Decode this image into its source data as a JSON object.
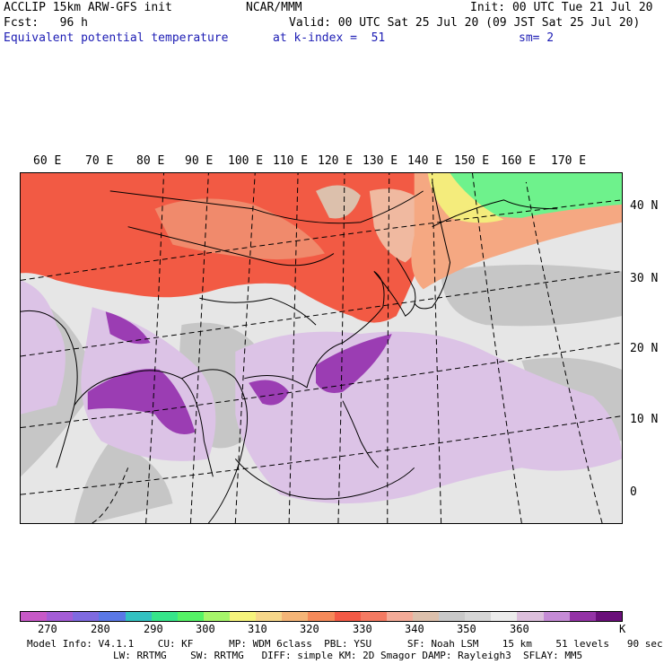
{
  "header": {
    "line1_left": "ACCLIP 15km ARW-GFS init",
    "line1_mid": "NCAR/MMM",
    "line1_right": "Init: 00 UTC Tue 21 Jul 20",
    "line2_left": "Fcst:   96 h",
    "line2_right": "Valid: 00 UTC Sat 25 Jul 20 (09 JST Sat 25 Jul 20)",
    "line3_left": "Equivalent potential temperature",
    "line3_mid": "at k-index =  51",
    "line3_right": "sm= 2"
  },
  "map": {
    "lon_labels": [
      "60 E",
      "70 E",
      "80 E",
      "90 E",
      "100 E",
      "110 E",
      "120 E",
      "130 E",
      "140 E",
      "150 E",
      "160 E",
      "170 E"
    ],
    "lat_labels": [
      "40 N",
      "30 N",
      "20 N",
      "10 N",
      "0"
    ]
  },
  "colorbar": {
    "colors": [
      "#c759c7",
      "#a45cd6",
      "#7f6ae0",
      "#5a78e6",
      "#33c1c1",
      "#36e58a",
      "#55f266",
      "#a6f56a",
      "#f6f47c",
      "#f7d78a",
      "#f5b577",
      "#f58a5a",
      "#f35a46",
      "#f47a62",
      "#f4ab98",
      "#dcc0ac",
      "#c8c8c8",
      "#d6d6d6",
      "#ececec",
      "#dcbfdc",
      "#c58bd6",
      "#9433a6",
      "#6a0f7a"
    ],
    "labels": [
      "270",
      "280",
      "290",
      "300",
      "310",
      "320",
      "330",
      "340",
      "350",
      "360",
      "K"
    ]
  },
  "footer": {
    "line1": "Model Info: V4.1.1    CU: KF      MP: WDM 6class  PBL: YSU      SF: Noah LSM    15 km    51 levels   90 sec",
    "line2": "LW: RRTMG    SW: RRTMG   DIFF: simple KM: 2D Smagor DAMP: Rayleigh3  SFLAY: MM5"
  }
}
